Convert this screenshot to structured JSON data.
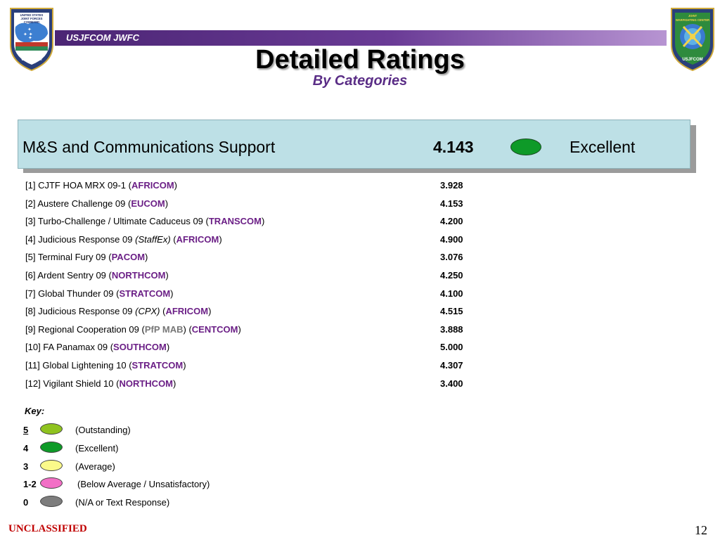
{
  "header": {
    "banner_text": "USJFCOM JWFC",
    "left_logo_text_top": "UNITED STATES JOINT FORCES COMMAND",
    "left_logo_text_bottom": "USJFCOM",
    "right_logo_text_top": "JOINT WARFIGHTING CENTER",
    "right_logo_text_bottom": "USJFCOM"
  },
  "title": "Detailed Ratings",
  "subtitle": "By Categories",
  "category": {
    "name": "M&S and Communications Support",
    "score": "4.143",
    "rating": "Excellent",
    "rating_color": "#0e9a28"
  },
  "rows": [
    {
      "prefix": "[1]  CJTF HOA MRX 09-1  (",
      "note": "",
      "mab": "",
      "command": "AFRICOM",
      "suffix": ")",
      "score": "3.928"
    },
    {
      "prefix": "[2]  Austere Challenge 09  (",
      "note": "",
      "mab": "",
      "command": "EUCOM",
      "suffix": ")",
      "score": "4.153"
    },
    {
      "prefix": "[3]  Turbo-Challenge / Ultimate Caduceus 09  (",
      "note": "",
      "mab": "",
      "command": "TRANSCOM",
      "suffix": ")",
      "score": "4.200"
    },
    {
      "prefix": "[4]  Judicious Response 09 ",
      "note": "(StaffEx)",
      "mab": "",
      "command": "AFRICOM",
      "suffix": ")",
      "score": "4.900"
    },
    {
      "prefix": "[5]  Terminal Fury 09  (",
      "note": "",
      "mab": "",
      "command": "PACOM",
      "suffix": ")",
      "score": "3.076"
    },
    {
      "prefix": "[6]  Ardent Sentry 09  (",
      "note": "",
      "mab": "",
      "command": "NORTHCOM",
      "suffix": ")",
      "score": "4.250"
    },
    {
      "prefix": "[7]  Global Thunder 09  (",
      "note": "",
      "mab": "",
      "command": "STRATCOM",
      "suffix": ")",
      "score": "4.100"
    },
    {
      "prefix": "[8]  Judicious Response 09 ",
      "note": "(CPX)",
      "mab": "",
      "command": "AFRICOM",
      "suffix": ")",
      "score": "4.515"
    },
    {
      "prefix": "[9]  Regional Cooperation 09 (",
      "note": "",
      "mab": "PfP MAB",
      "command": "CENTCOM",
      "suffix": ")",
      "score": "3.888"
    },
    {
      "prefix": "[10] FA Panamax 09  (",
      "note": "",
      "mab": "",
      "command": "SOUTHCOM",
      "suffix": ")",
      "score": "5.000"
    },
    {
      "prefix": "[11] Global Lightening 10  (",
      "note": "",
      "mab": "",
      "command": "STRATCOM",
      "suffix": ")",
      "score": "4.307"
    },
    {
      "prefix": "[12] Vigilant Shield 10  (",
      "note": "",
      "mab": "",
      "command": "NORTHCOM",
      "suffix": ")",
      "score": "3.400"
    }
  ],
  "key": {
    "title": "Key:",
    "items": [
      {
        "value": "5",
        "label": "(Outstanding)",
        "color": "#8fc31f"
      },
      {
        "value": "4",
        "label": "(Excellent)",
        "color": "#0e9a28"
      },
      {
        "value": "3",
        "label": "(Average)",
        "color": "#fbf98a"
      },
      {
        "value": "1-2",
        "label": "(Below Average / Unsatisfactory)",
        "color": "#f26fc6"
      },
      {
        "value": "0",
        "label": "(N/A or Text Response)",
        "color": "#7d7d7d"
      }
    ]
  },
  "footer": {
    "classification": "UNCLASSIFIED",
    "page_number": "12"
  }
}
